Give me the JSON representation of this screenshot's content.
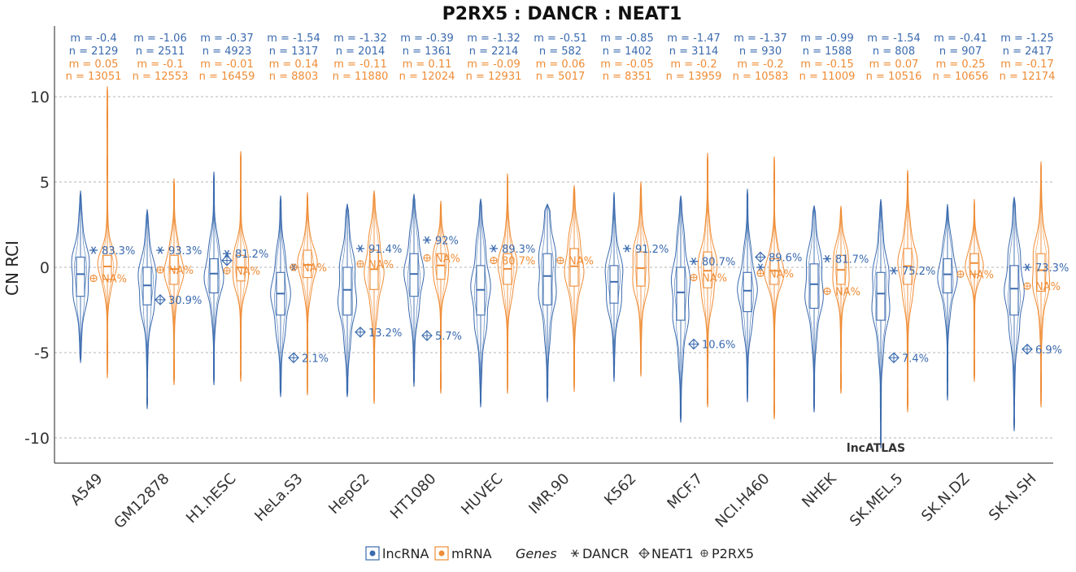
{
  "chart_data": {
    "type": "violin",
    "title": "P2RX5 : DANCR : NEAT1",
    "ylabel": "CN RCI",
    "xlabel": "",
    "ylim": [
      -11,
      14
    ],
    "yticks": [
      10,
      5,
      0,
      -5,
      -10
    ],
    "ytick_labels": [
      "10",
      "5",
      "0",
      "-5",
      "-10"
    ],
    "grid": "horizontal dashed at y ticks",
    "watermark": "lncATLAS",
    "colors": {
      "lncRNA": "#3a6aae",
      "mRNA": "#ef8c35",
      "grid": "#9e9e9e",
      "text": "#222222"
    },
    "legend": {
      "position": "bottom",
      "entries": [
        {
          "label": "lncRNA",
          "color": "#3a6aae"
        },
        {
          "label": "mRNA",
          "color": "#ef8c35"
        }
      ],
      "genes_title": "Genes",
      "genes": [
        {
          "label": "DANCR",
          "symbol": "asterisk"
        },
        {
          "label": "NEAT1",
          "symbol": "diamond-plus"
        },
        {
          "label": "P2RX5",
          "symbol": "circle-plus"
        }
      ]
    },
    "cells": [
      {
        "name": "A549",
        "lnc": {
          "m": "m = -0.4",
          "n": "n = 2129",
          "median": -0.4,
          "q1": -1.7,
          "q3": 0.6,
          "min": -5.6,
          "max": 4.5
        },
        "mrna": {
          "m": "m = 0.05",
          "n": "n = 13051",
          "median": 0.05,
          "q1": -0.7,
          "q3": 0.7,
          "min": -6.5,
          "max": 10.6
        },
        "genes": [
          {
            "gene": "DANCR",
            "value": 1.0,
            "label": "83.3%",
            "color": "lnc"
          },
          {
            "gene": "P2RX5",
            "value": -0.65,
            "label": "NA%",
            "color": "mrna"
          }
        ]
      },
      {
        "name": "GM12878",
        "lnc": {
          "m": "m = -1.06",
          "n": "n = 2511",
          "median": -1.06,
          "q1": -2.2,
          "q3": 0.0,
          "min": -8.3,
          "max": 3.4
        },
        "mrna": {
          "m": "m = -0.1",
          "n": "n = 12553",
          "median": -0.1,
          "q1": -1.0,
          "q3": 0.7,
          "min": -6.9,
          "max": 5.2
        },
        "genes": [
          {
            "gene": "DANCR",
            "value": 1.0,
            "label": "93.3%",
            "color": "lnc"
          },
          {
            "gene": "NEAT1",
            "value": -1.9,
            "label": "30.9%",
            "color": "lnc"
          },
          {
            "gene": "P2RX5",
            "value": -0.15,
            "label": "NA%",
            "color": "mrna"
          }
        ]
      },
      {
        "name": "H1.hESC",
        "lnc": {
          "m": "m = -0.37",
          "n": "n = 4923",
          "median": -0.37,
          "q1": -1.5,
          "q3": 0.5,
          "min": -6.9,
          "max": 5.6
        },
        "mrna": {
          "m": "m = -0.01",
          "n": "n = 16459",
          "median": -0.01,
          "q1": -0.8,
          "q3": 0.7,
          "min": -6.7,
          "max": 6.8
        },
        "genes": [
          {
            "gene": "DANCR",
            "value": 0.8,
            "label": "81.2%",
            "color": "lnc"
          },
          {
            "gene": "NEAT1",
            "value": 0.4,
            "label": "",
            "color": "lnc"
          },
          {
            "gene": "P2RX5",
            "value": -0.2,
            "label": "NA%",
            "color": "mrna"
          }
        ]
      },
      {
        "name": "HeLa.S3",
        "lnc": {
          "m": "m = -1.54",
          "n": "n = 1317",
          "median": -1.54,
          "q1": -2.8,
          "q3": -0.3,
          "min": -7.6,
          "max": 4.2
        },
        "mrna": {
          "m": "m = 0.14",
          "n": "n = 8803",
          "median": 0.14,
          "q1": -0.6,
          "q3": 1.0,
          "min": -7.5,
          "max": 4.4
        },
        "genes": [
          {
            "gene": "DANCR",
            "value": 0.0,
            "label": "",
            "color": "lnc"
          },
          {
            "gene": "NEAT1",
            "value": -5.3,
            "label": "2.1%",
            "color": "lnc"
          },
          {
            "gene": "P2RX5",
            "value": 0.0,
            "label": "NA%",
            "color": "mrna"
          }
        ]
      },
      {
        "name": "HepG2",
        "lnc": {
          "m": "m = -1.32",
          "n": "n = 2014",
          "median": -1.32,
          "q1": -2.8,
          "q3": 0.0,
          "min": -7.6,
          "max": 3.7
        },
        "mrna": {
          "m": "m = -0.11",
          "n": "n = 11880",
          "median": -0.11,
          "q1": -1.3,
          "q3": 1.0,
          "min": -8.0,
          "max": 4.5
        },
        "genes": [
          {
            "gene": "DANCR",
            "value": 1.1,
            "label": "91.4%",
            "color": "lnc"
          },
          {
            "gene": "NEAT1",
            "value": -3.8,
            "label": "13.2%",
            "color": "lnc"
          },
          {
            "gene": "P2RX5",
            "value": 0.2,
            "label": "NA%",
            "color": "mrna"
          }
        ]
      },
      {
        "name": "HT1080",
        "lnc": {
          "m": "m = -0.39",
          "n": "n = 1361",
          "median": -0.39,
          "q1": -1.7,
          "q3": 0.8,
          "min": -7.0,
          "max": 4.3
        },
        "mrna": {
          "m": "m = 0.11",
          "n": "n = 12024",
          "median": 0.11,
          "q1": -0.7,
          "q3": 0.8,
          "min": -7.4,
          "max": 3.9
        },
        "genes": [
          {
            "gene": "DANCR",
            "value": 1.6,
            "label": "92%",
            "color": "lnc"
          },
          {
            "gene": "NEAT1",
            "value": -4.0,
            "label": "5.7%",
            "color": "lnc"
          },
          {
            "gene": "P2RX5",
            "value": 0.55,
            "label": "NA%",
            "color": "mrna"
          }
        ]
      },
      {
        "name": "HUVEC",
        "lnc": {
          "m": "m = -1.32",
          "n": "n = 2214",
          "median": -1.32,
          "q1": -2.8,
          "q3": 0.1,
          "min": -8.2,
          "max": 4.0
        },
        "mrna": {
          "m": "m = -0.09",
          "n": "n = 12931",
          "median": -0.09,
          "q1": -1.0,
          "q3": 0.8,
          "min": -7.4,
          "max": 5.5
        },
        "genes": [
          {
            "gene": "DANCR",
            "value": 1.1,
            "label": "89.3%",
            "color": "lnc"
          },
          {
            "gene": "P2RX5",
            "value": 0.4,
            "label": "80.7%",
            "color": "mrna"
          }
        ]
      },
      {
        "name": "IMR.90",
        "lnc": {
          "m": "m = -0.51",
          "n": "n = 582",
          "median": -0.51,
          "q1": -2.2,
          "q3": 0.8,
          "min": -7.9,
          "max": 3.7
        },
        "mrna": {
          "m": "m = 0.06",
          "n": "n = 5017",
          "median": 0.06,
          "q1": -1.1,
          "q3": 1.1,
          "min": -7.3,
          "max": 4.8
        },
        "genes": [
          {
            "gene": "P2RX5",
            "value": 0.4,
            "label": "NA%",
            "color": "mrna"
          }
        ]
      },
      {
        "name": "K562",
        "lnc": {
          "m": "m = -0.85",
          "n": "n = 1402",
          "median": -0.85,
          "q1": -2.1,
          "q3": 0.1,
          "min": -6.7,
          "max": 4.4
        },
        "mrna": {
          "m": "m = -0.05",
          "n": "n = 8351",
          "median": -0.05,
          "q1": -1.1,
          "q3": 0.9,
          "min": -6.4,
          "max": 5.0
        },
        "genes": [
          {
            "gene": "DANCR",
            "value": 1.1,
            "label": "91.2%",
            "color": "lnc"
          }
        ]
      },
      {
        "name": "MCF.7",
        "lnc": {
          "m": "m = -1.47",
          "n": "n = 3114",
          "median": -1.47,
          "q1": -3.1,
          "q3": 0.0,
          "min": -9.1,
          "max": 4.2
        },
        "mrna": {
          "m": "m = -0.2",
          "n": "n = 13959",
          "median": -0.2,
          "q1": -1.2,
          "q3": 0.9,
          "min": -8.2,
          "max": 6.7
        },
        "genes": [
          {
            "gene": "DANCR",
            "value": 0.35,
            "label": "80.7%",
            "color": "lnc"
          },
          {
            "gene": "NEAT1",
            "value": -4.5,
            "label": "10.6%",
            "color": "lnc"
          },
          {
            "gene": "P2RX5",
            "value": -0.6,
            "label": "NA%",
            "color": "mrna"
          }
        ]
      },
      {
        "name": "NCI.H460",
        "lnc": {
          "m": "m = -1.37",
          "n": "n = 930",
          "median": -1.37,
          "q1": -2.6,
          "q3": -0.3,
          "min": -7.9,
          "max": 4.6
        },
        "mrna": {
          "m": "m = -0.2",
          "n": "n = 10583",
          "median": -0.2,
          "q1": -1.0,
          "q3": 0.5,
          "min": -8.9,
          "max": 6.5
        },
        "genes": [
          {
            "gene": "DANCR",
            "value": 0.0,
            "label": "",
            "color": "lnc"
          },
          {
            "gene": "NEAT1",
            "value": 0.6,
            "label": "89.6%",
            "color": "lnc"
          },
          {
            "gene": "P2RX5",
            "value": -0.35,
            "label": "NA%",
            "color": "mrna"
          }
        ]
      },
      {
        "name": "NHEK",
        "lnc": {
          "m": "m = -0.99",
          "n": "n = 1588",
          "median": -0.99,
          "q1": -2.4,
          "q3": 0.2,
          "min": -8.5,
          "max": 3.6
        },
        "mrna": {
          "m": "m = -0.15",
          "n": "n = 11009",
          "median": -0.15,
          "q1": -1.0,
          "q3": 0.7,
          "min": -7.4,
          "max": 3.6
        },
        "genes": [
          {
            "gene": "DANCR",
            "value": 0.5,
            "label": "81.7%",
            "color": "lnc"
          },
          {
            "gene": "P2RX5",
            "value": -1.4,
            "label": "NA%",
            "color": "mrna"
          }
        ]
      },
      {
        "name": "SK.MEL.5",
        "lnc": {
          "m": "m = -1.54",
          "n": "n = 808",
          "median": -1.54,
          "q1": -3.1,
          "q3": -0.3,
          "min": -10.6,
          "max": 4.0
        },
        "mrna": {
          "m": "m = 0.07",
          "n": "n = 10516",
          "median": 0.07,
          "q1": -1.0,
          "q3": 1.1,
          "min": -8.5,
          "max": 5.7
        },
        "genes": [
          {
            "gene": "DANCR",
            "value": -0.2,
            "label": "75.2%",
            "color": "lnc"
          },
          {
            "gene": "NEAT1",
            "value": -5.3,
            "label": "7.4%",
            "color": "lnc"
          }
        ]
      },
      {
        "name": "SK.N.DZ",
        "lnc": {
          "m": "m = -0.41",
          "n": "n = 907",
          "median": -0.41,
          "q1": -1.5,
          "q3": 0.5,
          "min": -7.8,
          "max": 3.7
        },
        "mrna": {
          "m": "m = 0.25",
          "n": "n = 10656",
          "median": 0.25,
          "q1": -0.4,
          "q3": 0.8,
          "min": -6.7,
          "max": 4.0
        },
        "genes": [
          {
            "gene": "P2RX5",
            "value": -0.4,
            "label": "NA%",
            "color": "mrna"
          }
        ]
      },
      {
        "name": "SK.N.SH",
        "lnc": {
          "m": "m = -1.25",
          "n": "n = 2417",
          "median": -1.25,
          "q1": -2.8,
          "q3": 0.1,
          "min": -9.6,
          "max": 4.1
        },
        "mrna": {
          "m": "m = -0.17",
          "n": "n = 12174",
          "median": -0.17,
          "q1": -1.4,
          "q3": 0.8,
          "min": -8.2,
          "max": 6.2
        },
        "genes": [
          {
            "gene": "DANCR",
            "value": 0.0,
            "label": "73.3%",
            "color": "lnc"
          },
          {
            "gene": "NEAT1",
            "value": -4.8,
            "label": "6.9%",
            "color": "lnc"
          },
          {
            "gene": "P2RX5",
            "value": -1.1,
            "label": "NA%",
            "color": "mrna"
          }
        ]
      }
    ]
  }
}
